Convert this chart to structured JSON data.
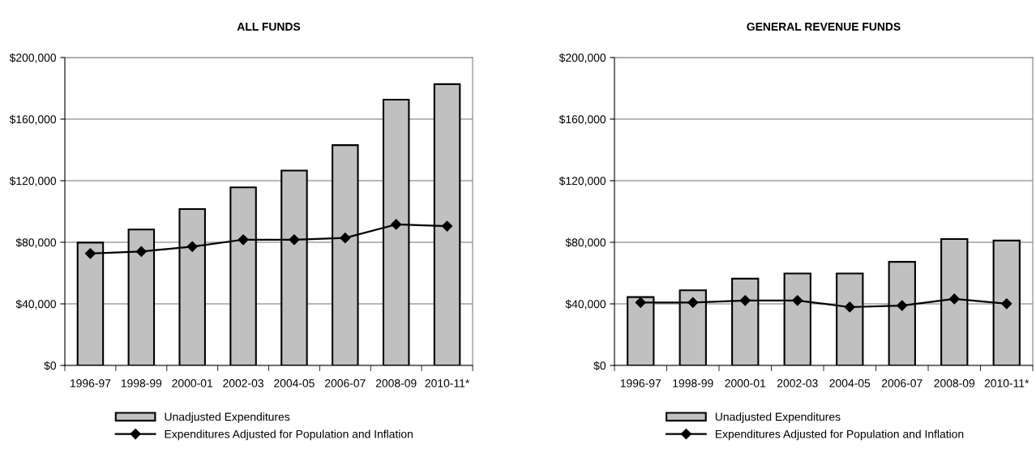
{
  "chart_data": [
    {
      "type": "bar",
      "title": "ALL FUNDS",
      "categories": [
        "1996-97",
        "1998-99",
        "2000-01",
        "2002-03",
        "2004-05",
        "2006-07",
        "2008-09",
        "2010-11*"
      ],
      "series": [
        {
          "name": "Unadjusted Expenditures",
          "color": "#c0c0c0",
          "values": [
            79800,
            88300,
            101600,
            115700,
            126600,
            143100,
            172600,
            182700
          ]
        },
        {
          "name": "Expenditures Adjusted for Population and Inflation",
          "type": "line",
          "color": "#000000",
          "values": [
            72700,
            74000,
            77200,
            81700,
            81700,
            82800,
            91600,
            90500
          ]
        }
      ],
      "ylim": [
        0,
        200000
      ],
      "yticks": [
        {
          "value": 0,
          "label": "$0"
        },
        {
          "value": 40000,
          "label": "$40,000"
        },
        {
          "value": 80000,
          "label": "$80,000"
        },
        {
          "value": 120000,
          "label": "$120,000"
        },
        {
          "value": 160000,
          "label": "$160,000"
        },
        {
          "value": 200000,
          "label": "$200,000"
        }
      ],
      "grid": "y",
      "legend": "bottom",
      "marker": "diamond"
    },
    {
      "type": "bar",
      "title": "GENERAL REVENUE FUNDS",
      "categories": [
        "1996-97",
        "1998-99",
        "2000-01",
        "2002-03",
        "2004-05",
        "2006-07",
        "2008-09",
        "2010-11*"
      ],
      "series": [
        {
          "name": "Unadjusted Expenditures",
          "color": "#c0c0c0",
          "values": [
            44400,
            48800,
            56400,
            59700,
            59700,
            67300,
            82100,
            81100
          ]
        },
        {
          "name": "Expenditures Adjusted for Population and Inflation",
          "type": "line",
          "color": "#000000",
          "values": [
            40900,
            40900,
            42200,
            42200,
            37900,
            38900,
            43200,
            40100
          ]
        }
      ],
      "ylim": [
        0,
        200000
      ],
      "yticks": [
        {
          "value": 0,
          "label": "$0"
        },
        {
          "value": 40000,
          "label": "$40,000"
        },
        {
          "value": 80000,
          "label": "$80,000"
        },
        {
          "value": 120000,
          "label": "$120,000"
        },
        {
          "value": 160000,
          "label": "$160,000"
        },
        {
          "value": 200000,
          "label": "$200,000"
        }
      ],
      "grid": "y",
      "legend": "bottom",
      "marker": "diamond"
    }
  ]
}
